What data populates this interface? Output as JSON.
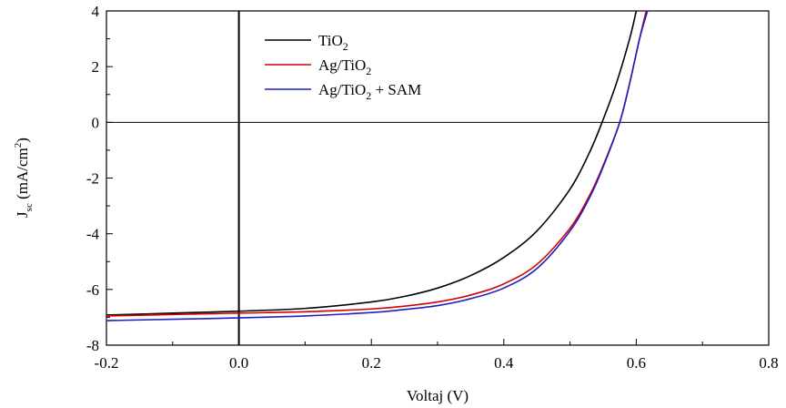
{
  "chart_data": {
    "type": "line",
    "title": "",
    "xlabel": "Voltaj (V)",
    "ylabel": {
      "main": "J",
      "sub": "sc",
      "unit": " (mA/cm",
      "sup": "2",
      "close": ")"
    },
    "xlim": [
      -0.2,
      0.8
    ],
    "ylim": [
      -8,
      4
    ],
    "x_ticks": [
      {
        "value": -0.2,
        "label": "-0.2"
      },
      {
        "value": 0.0,
        "label": "0.0"
      },
      {
        "value": 0.2,
        "label": "0.2"
      },
      {
        "value": 0.4,
        "label": "0.4"
      },
      {
        "value": 0.6,
        "label": "0.6"
      },
      {
        "value": 0.8,
        "label": "0.8"
      }
    ],
    "y_ticks": [
      {
        "value": -8,
        "label": "-8"
      },
      {
        "value": -6,
        "label": "-6"
      },
      {
        "value": -4,
        "label": "-4"
      },
      {
        "value": -2,
        "label": "-2"
      },
      {
        "value": 0,
        "label": "0"
      },
      {
        "value": 2,
        "label": "2"
      },
      {
        "value": 4,
        "label": "4"
      }
    ],
    "reference_lines": {
      "x": 0,
      "y": 0
    },
    "grid": false,
    "legend_position": "top-left",
    "series": [
      {
        "name": "TiO2",
        "legend": {
          "pre": "TiO",
          "sub": "2",
          "post": ""
        },
        "color": "#000000",
        "x": [
          -0.2,
          -0.1,
          0.0,
          0.1,
          0.2,
          0.25,
          0.3,
          0.35,
          0.4,
          0.45,
          0.5,
          0.53,
          0.55,
          0.57,
          0.59,
          0.6
        ],
        "y": [
          -6.92,
          -6.85,
          -6.78,
          -6.68,
          -6.45,
          -6.25,
          -5.95,
          -5.5,
          -4.85,
          -3.9,
          -2.4,
          -1.05,
          0.1,
          1.4,
          3.0,
          4.0
        ]
      },
      {
        "name": "Ag/TiO2",
        "legend": {
          "pre": "Ag/TiO",
          "sub": "2",
          "post": ""
        },
        "color": "#d40000",
        "x": [
          -0.2,
          -0.1,
          0.0,
          0.1,
          0.2,
          0.25,
          0.3,
          0.35,
          0.4,
          0.45,
          0.5,
          0.53,
          0.55,
          0.575,
          0.59,
          0.605,
          0.615
        ],
        "y": [
          -6.95,
          -6.9,
          -6.85,
          -6.8,
          -6.7,
          -6.6,
          -6.45,
          -6.2,
          -5.8,
          -5.1,
          -3.8,
          -2.6,
          -1.55,
          0.0,
          1.4,
          3.0,
          4.0
        ]
      },
      {
        "name": "Ag/TiO2 + SAM",
        "legend": {
          "pre": "Ag/TiO",
          "sub": "2",
          "post": " + SAM"
        },
        "color": "#1f1fbf",
        "x": [
          -0.2,
          -0.1,
          0.0,
          0.1,
          0.2,
          0.25,
          0.3,
          0.35,
          0.4,
          0.45,
          0.5,
          0.53,
          0.55,
          0.575,
          0.59,
          0.605,
          0.617
        ],
        "y": [
          -7.12,
          -7.07,
          -7.02,
          -6.95,
          -6.83,
          -6.72,
          -6.58,
          -6.33,
          -5.95,
          -5.25,
          -3.9,
          -2.68,
          -1.6,
          0.0,
          1.4,
          3.0,
          4.0
        ]
      }
    ]
  }
}
